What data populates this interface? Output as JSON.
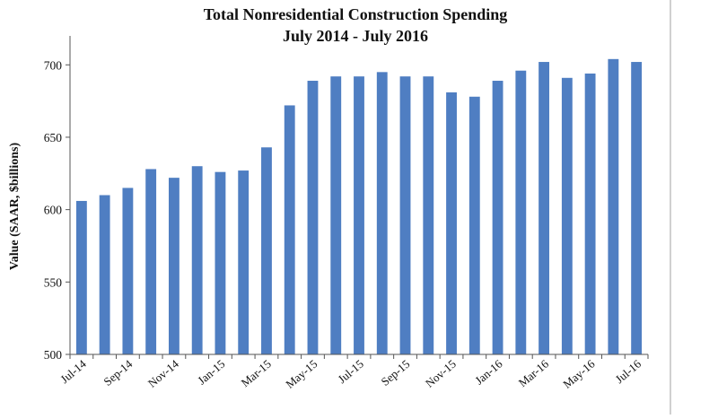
{
  "chart_data": {
    "type": "bar",
    "title": "Total Nonresidential Construction Spending",
    "subtitle": "July 2014 - July 2016",
    "xlabel": "",
    "ylabel": "Value (SAAR, $billions)",
    "ylim": [
      500,
      720
    ],
    "yticks": [
      500,
      550,
      600,
      650,
      700
    ],
    "grid": false,
    "legend": "none",
    "bar_color": "#4f7ec2",
    "categories": [
      "Jul-14",
      "Aug-14",
      "Sep-14",
      "Oct-14",
      "Nov-14",
      "Dec-14",
      "Jan-15",
      "Feb-15",
      "Mar-15",
      "Apr-15",
      "May-15",
      "Jun-15",
      "Jul-15",
      "Aug-15",
      "Sep-15",
      "Oct-15",
      "Nov-15",
      "Dec-15",
      "Jan-16",
      "Feb-16",
      "Mar-16",
      "Apr-16",
      "May-16",
      "Jun-16",
      "Jul-16"
    ],
    "tick_labels": [
      "Jul-14",
      "Sep-14",
      "Nov-14",
      "Jan-15",
      "Mar-15",
      "May-15",
      "Jul-15",
      "Sep-15",
      "Nov-15",
      "Jan-16",
      "Mar-16",
      "May-16",
      "Jul-16"
    ],
    "values": [
      606,
      610,
      615,
      628,
      622,
      630,
      626,
      627,
      643,
      672,
      689,
      692,
      692,
      695,
      692,
      692,
      681,
      678,
      689,
      696,
      702,
      691,
      694,
      704,
      702
    ]
  }
}
